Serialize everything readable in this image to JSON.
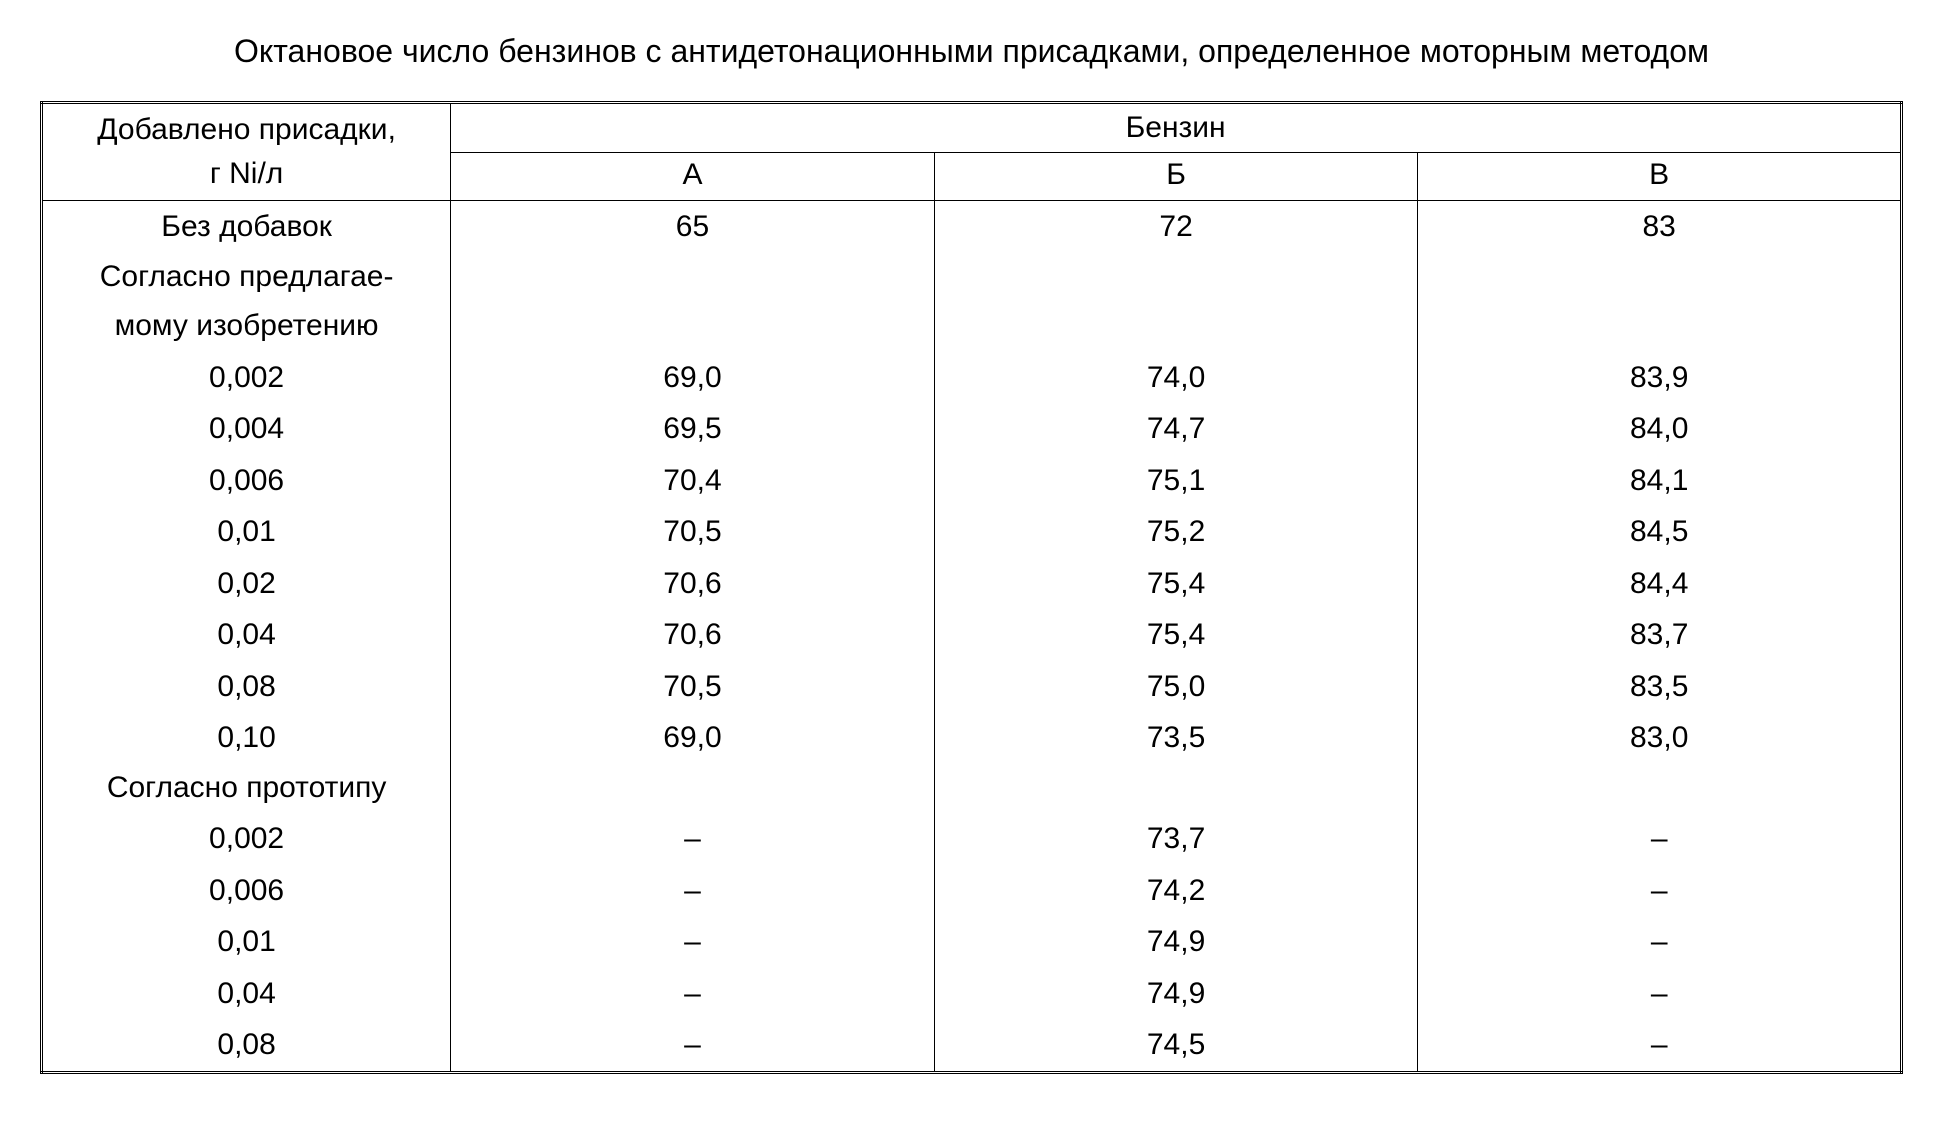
{
  "title": "Октановое число бензинов с антидетонационными присадками, определенное моторным методом",
  "table": {
    "type": "table",
    "background_color": "#ffffff",
    "text_color": "#000000",
    "border_color": "#000000",
    "font_family": "Arial",
    "title_fontsize": 32,
    "cell_fontsize": 30,
    "col_widths_pct": [
      22,
      26,
      26,
      26
    ],
    "header": {
      "row_header_line1": "Добавлено присадки,",
      "row_header_line2": "г Ni/л",
      "group_header": "Бензин",
      "columns": [
        "А",
        "Б",
        "В"
      ]
    },
    "rows": [
      {
        "label": "Без добавок",
        "a": "65",
        "b": "72",
        "c": "83",
        "section": false
      },
      {
        "label": "Согласно предлагае-",
        "a": "",
        "b": "",
        "c": "",
        "section": true
      },
      {
        "label": "мому изобретению",
        "a": "",
        "b": "",
        "c": "",
        "section": true
      },
      {
        "label": "0,002",
        "a": "69,0",
        "b": "74,0",
        "c": "83,9",
        "section": false
      },
      {
        "label": "0,004",
        "a": "69,5",
        "b": "74,7",
        "c": "84,0",
        "section": false
      },
      {
        "label": "0,006",
        "a": "70,4",
        "b": "75,1",
        "c": "84,1",
        "section": false
      },
      {
        "label": "0,01",
        "a": "70,5",
        "b": "75,2",
        "c": "84,5",
        "section": false
      },
      {
        "label": "0,02",
        "a": "70,6",
        "b": "75,4",
        "c": "84,4",
        "section": false
      },
      {
        "label": "0,04",
        "a": "70,6",
        "b": "75,4",
        "c": "83,7",
        "section": false
      },
      {
        "label": "0,08",
        "a": "70,5",
        "b": "75,0",
        "c": "83,5",
        "section": false
      },
      {
        "label": "0,10",
        "a": "69,0",
        "b": "73,5",
        "c": "83,0",
        "section": false
      },
      {
        "label": "Согласно прототипу",
        "a": "",
        "b": "",
        "c": "",
        "section": true
      },
      {
        "label": "0,002",
        "a": "–",
        "b": "73,7",
        "c": "–",
        "section": false
      },
      {
        "label": "0,006",
        "a": "–",
        "b": "74,2",
        "c": "–",
        "section": false
      },
      {
        "label": "0,01",
        "a": "–",
        "b": "74,9",
        "c": "–",
        "section": false
      },
      {
        "label": "0,04",
        "a": "–",
        "b": "74,9",
        "c": "–",
        "section": false
      },
      {
        "label": "0,08",
        "a": "–",
        "b": "74,5",
        "c": "–",
        "section": false
      }
    ]
  }
}
